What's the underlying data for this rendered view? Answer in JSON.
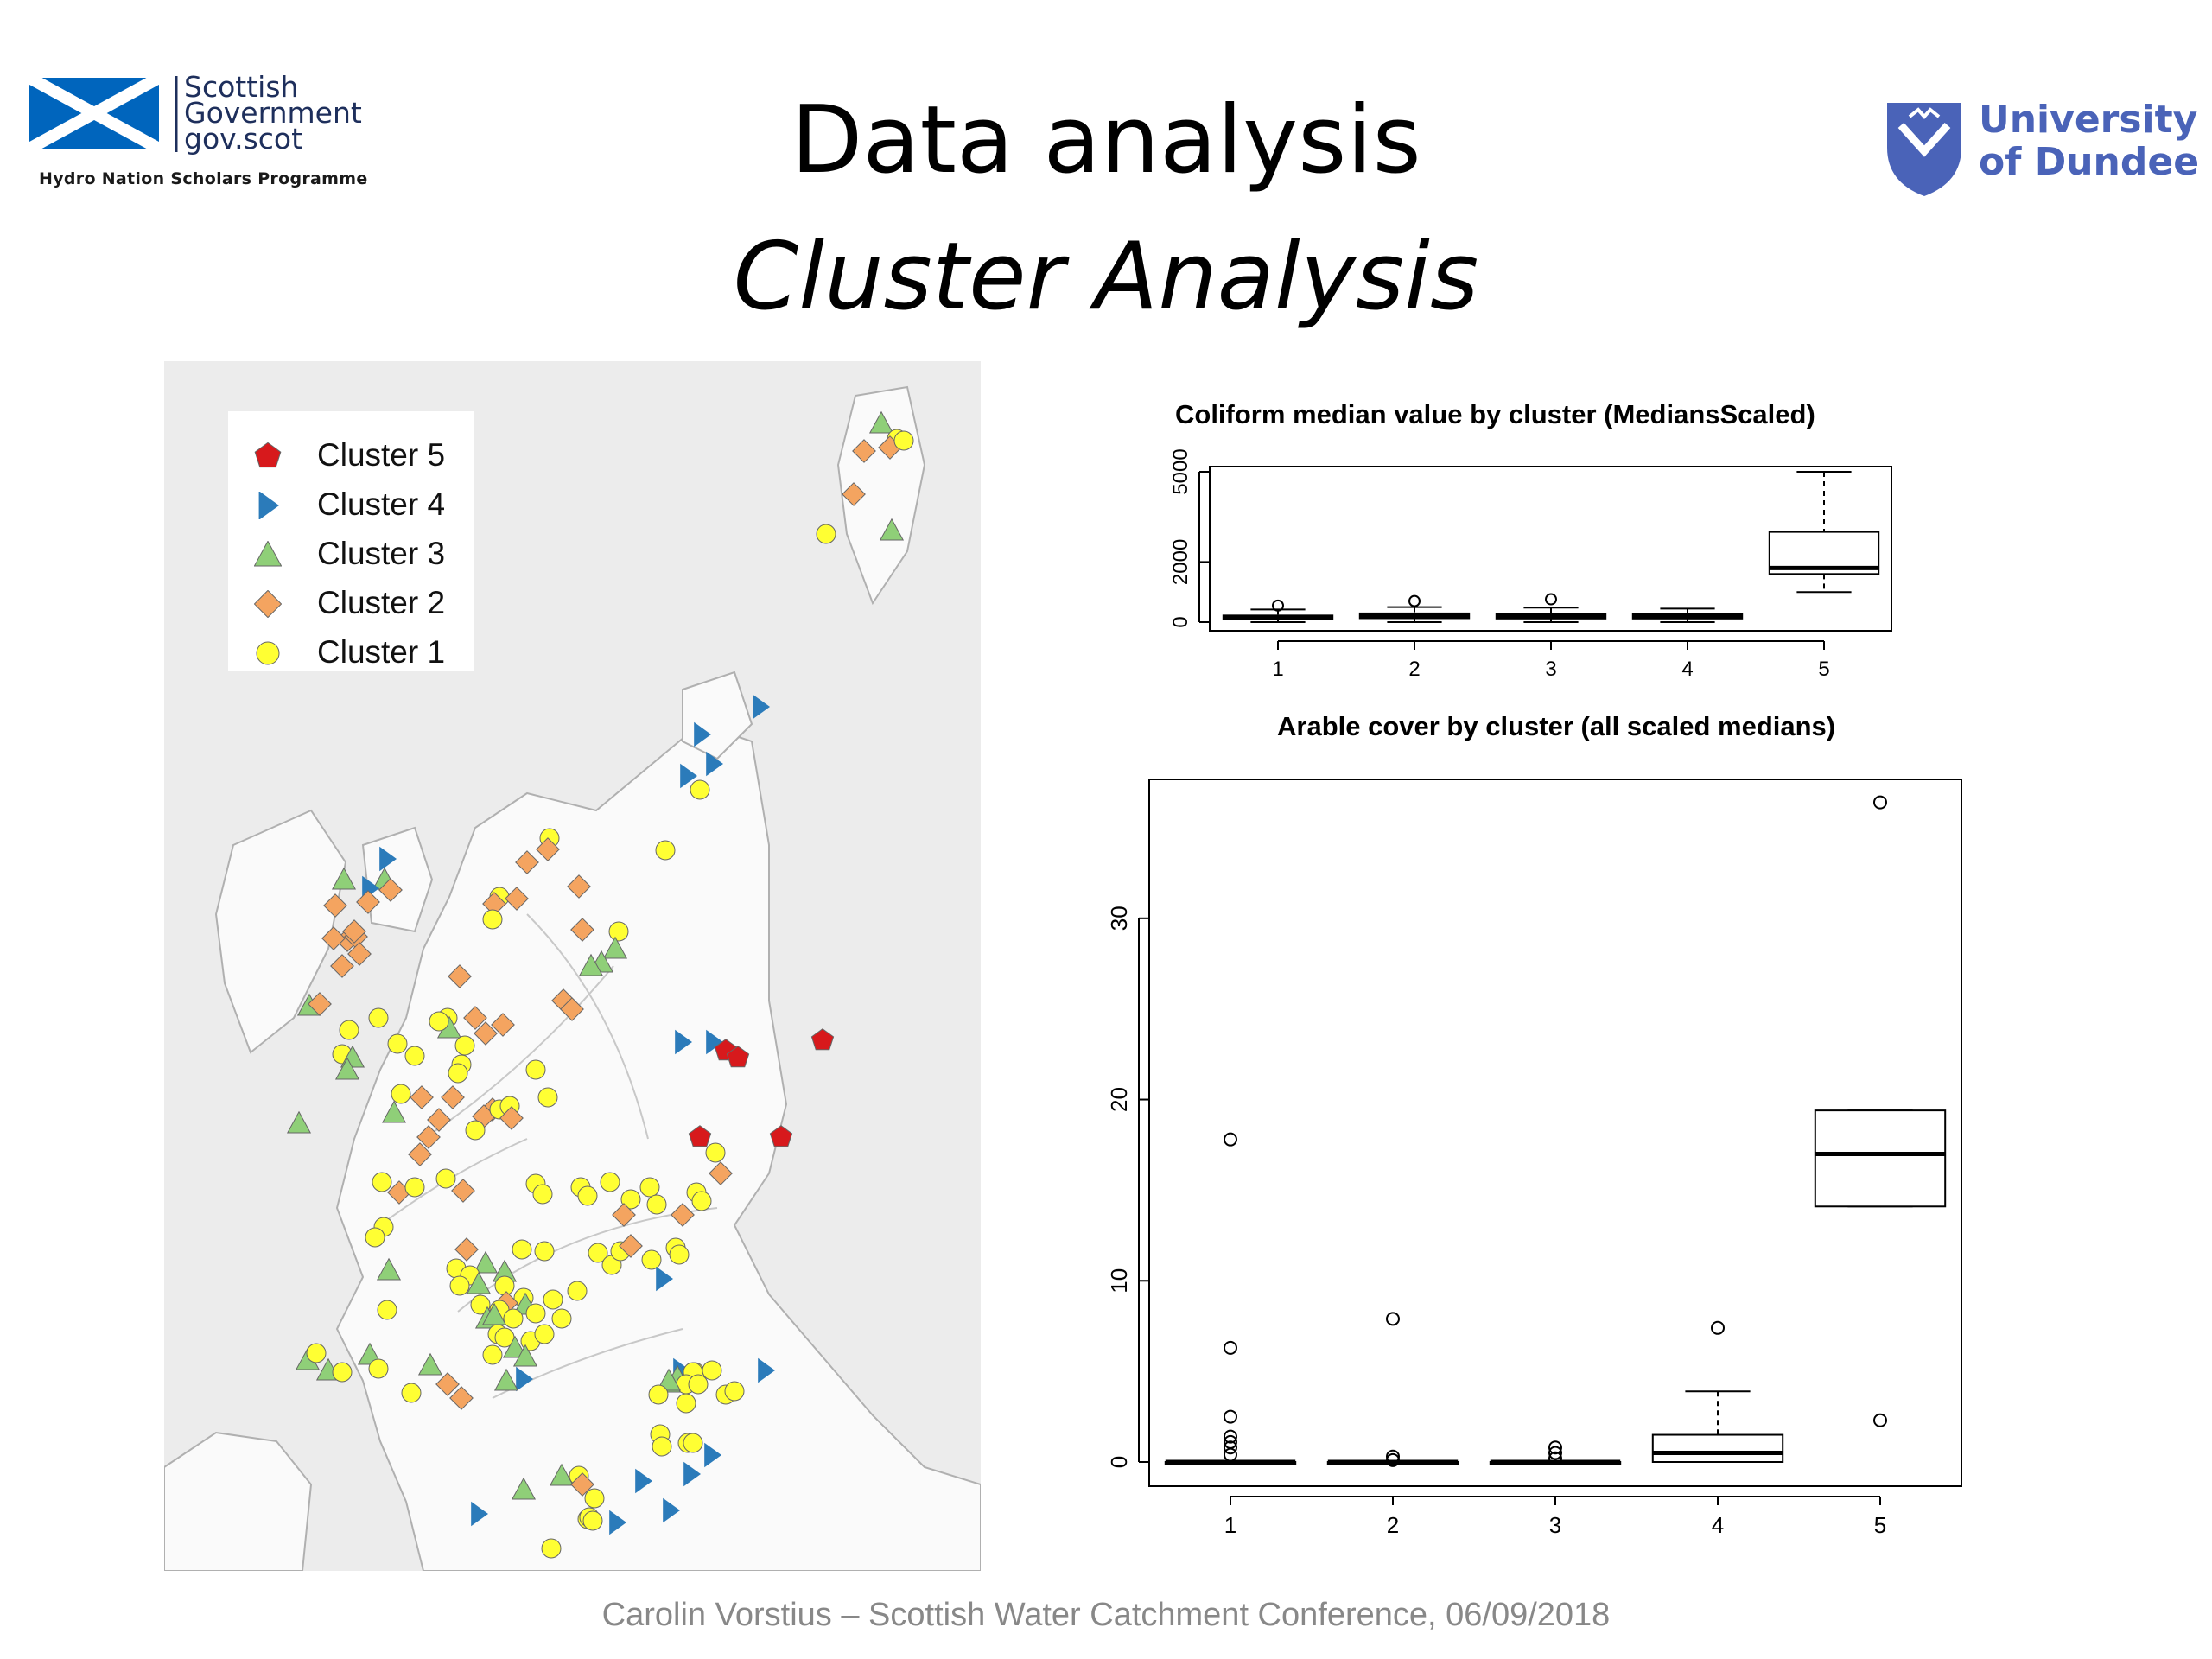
{
  "header": {
    "sg_name": [
      "Scottish",
      "Government",
      "gov.scot"
    ],
    "sg_tagline": "Hydro Nation Scholars Programme",
    "title": "Data analysis",
    "subtitle": "Cluster Analysis",
    "ud_name": [
      "University",
      "of Dundee"
    ]
  },
  "colors": {
    "cluster5": "#d7191c",
    "cluster4": "#2b7bba",
    "cluster3": "#8fcf78",
    "cluster2": "#f4a460",
    "cluster1": "#ffff33",
    "sg_blue": "#0065bd",
    "ud_blue": "#4a63b8"
  },
  "map": {
    "legend": [
      {
        "label": "Cluster 5",
        "symbol": "pentagon",
        "color": "#d7191c"
      },
      {
        "label": "Cluster 4",
        "symbol": "triangle-right",
        "color": "#2b7bba"
      },
      {
        "label": "Cluster 3",
        "symbol": "triangle-up",
        "color": "#8fcf78"
      },
      {
        "label": "Cluster 2",
        "symbol": "diamond",
        "color": "#f4a460"
      },
      {
        "label": "Cluster 1",
        "symbol": "circle",
        "color": "#ffff33"
      }
    ]
  },
  "chart_data": [
    {
      "type": "box",
      "title": "Coliform median value by cluster (MediansScaled)",
      "categories": [
        "1",
        "2",
        "3",
        "4",
        "5"
      ],
      "yticks": [
        0,
        2000,
        5000
      ],
      "ylim": [
        0,
        5000
      ],
      "boxes": [
        {
          "cluster": "1",
          "min": 0,
          "q1": 90,
          "median": 140,
          "q3": 220,
          "max": 420,
          "outliers": [
            550
          ]
        },
        {
          "cluster": "2",
          "min": 0,
          "q1": 130,
          "median": 200,
          "q3": 290,
          "max": 500,
          "outliers": [
            700
          ]
        },
        {
          "cluster": "3",
          "min": 0,
          "q1": 120,
          "median": 180,
          "q3": 270,
          "max": 480,
          "outliers": [
            760
          ]
        },
        {
          "cluster": "4",
          "min": 0,
          "q1": 120,
          "median": 190,
          "q3": 280,
          "max": 450,
          "outliers": []
        },
        {
          "cluster": "5",
          "min": 1000,
          "q1": 1600,
          "median": 1800,
          "q3": 3000,
          "max": 5000,
          "outliers": []
        }
      ]
    },
    {
      "type": "box",
      "title": "Arable cover by cluster (all scaled medians)",
      "categories": [
        "1",
        "2",
        "3",
        "4",
        "5"
      ],
      "yticks": [
        0,
        10,
        20,
        30
      ],
      "ylim": [
        0,
        37
      ],
      "boxes": [
        {
          "cluster": "1",
          "min": 0,
          "q1": 0,
          "median": 0,
          "q3": 0,
          "max": 0,
          "outliers": [
            17.8,
            6.3,
            2.5,
            1.4,
            1.1,
            0.8,
            0.4
          ]
        },
        {
          "cluster": "2",
          "min": 0,
          "q1": 0,
          "median": 0,
          "q3": 0,
          "max": 0,
          "outliers": [
            7.9,
            0.3,
            0.1
          ]
        },
        {
          "cluster": "3",
          "min": 0,
          "q1": 0,
          "median": 0,
          "q3": 0,
          "max": 0,
          "outliers": [
            0.8,
            0.5,
            0.2
          ]
        },
        {
          "cluster": "4",
          "min": 0,
          "q1": 0,
          "median": 0.5,
          "q3": 1.5,
          "max": 3.9,
          "outliers": [
            7.4
          ]
        },
        {
          "cluster": "5",
          "min": 14.1,
          "q1": 14.1,
          "median": 17.0,
          "q3": 19.4,
          "max": 19.4,
          "outliers": [
            36.4,
            2.3
          ]
        }
      ]
    }
  ],
  "footer": "Carolin Vorstius – Scottish Water Catchment Conference, 06/09/2018"
}
